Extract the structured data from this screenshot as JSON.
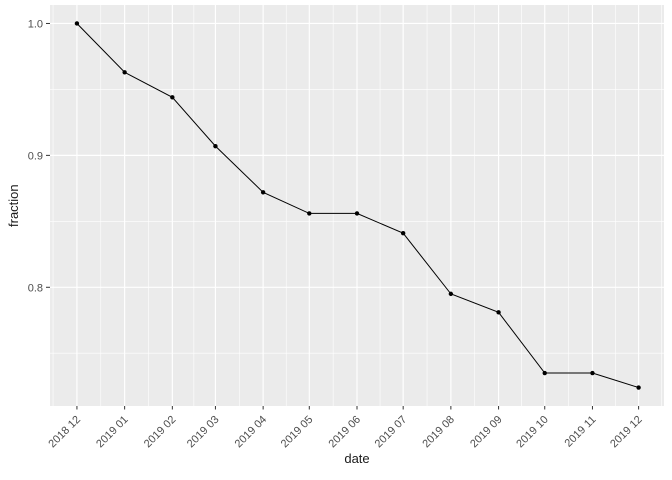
{
  "figure": {
    "background_color": "#FFFFFF",
    "panel_background_color": "#EBEBEB",
    "gridline_color": "#FFFFFF",
    "tick_mark_color": "#333333",
    "tick_label_color": "#4D4D4D",
    "axis_title_color": "#1A1A1A",
    "series_color": "#000000"
  },
  "chart_data": {
    "type": "line",
    "title": "",
    "xlabel": "date",
    "ylabel": "fraction",
    "legend": "none",
    "grid": true,
    "marker": "point",
    "x_tick_rotation_deg": 45,
    "categories": [
      "2018 12",
      "2019 01",
      "2019 02",
      "2019 03",
      "2019 04",
      "2019 05",
      "2019 06",
      "2019 07",
      "2019 08",
      "2019 09",
      "2019 10",
      "2019 11",
      "2019 12"
    ],
    "x_days": [
      0,
      31,
      62,
      90,
      121,
      151,
      182,
      212,
      243,
      274,
      304,
      335,
      365
    ],
    "values": [
      1.0,
      0.963,
      0.944,
      0.907,
      0.872,
      0.856,
      0.856,
      0.841,
      0.795,
      0.781,
      0.735,
      0.735,
      0.724
    ],
    "series": [
      {
        "name": "fraction",
        "values": [
          1.0,
          0.963,
          0.944,
          0.907,
          0.872,
          0.856,
          0.856,
          0.841,
          0.795,
          0.781,
          0.735,
          0.735,
          0.724
        ]
      }
    ],
    "y_major_ticks": [
      0.8,
      0.9,
      1.0
    ],
    "y_tick_labels": [
      "0.8",
      "0.9",
      "1.0"
    ],
    "y_minor_ticks": [
      0.75,
      0.85,
      0.95
    ],
    "ylim": [
      0.71,
      1.014
    ],
    "xlim_days": [
      -17.5,
      381.5
    ]
  }
}
